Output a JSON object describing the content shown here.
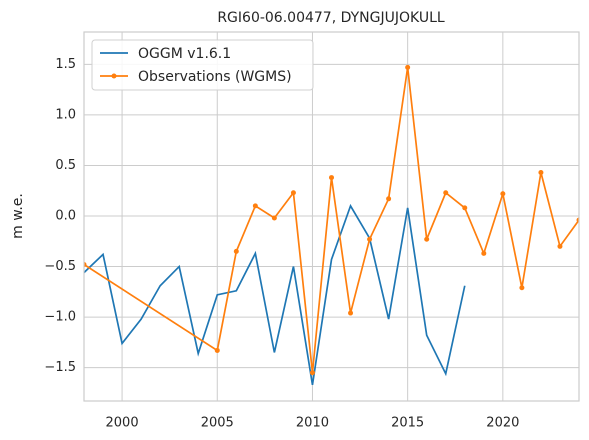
{
  "chart_data": {
    "type": "line",
    "title": "RGI60-06.00477, DYNGJUJOKULL",
    "y_label": "m w.e.",
    "xlim": [
      1998,
      2024
    ],
    "xticks": [
      2000,
      2005,
      2010,
      2015,
      2020
    ],
    "ylim": [
      -1.83,
      1.82
    ],
    "yticks": [
      {
        "value": -1.5,
        "label": "−1.5"
      },
      {
        "value": -1.0,
        "label": "−1.0"
      },
      {
        "value": -0.5,
        "label": "−0.5"
      },
      {
        "value": 0,
        "label": "0.0"
      },
      0.5,
      {
        "value": 1.0,
        "label": "1.0"
      },
      1.5
    ],
    "grid": true,
    "legend": "upper left",
    "series": [
      {
        "name": "OGGM v1.6.1",
        "color": "#1f77b4",
        "marker": false,
        "x": [
          1998,
          1999,
          2000,
          2001,
          2002,
          2003,
          2004,
          2005,
          2006,
          2007,
          2008,
          2009,
          2010,
          2011,
          2012,
          2013,
          2014,
          2015,
          2016,
          2017,
          2018
        ],
        "values": [
          -0.56,
          -0.38,
          -1.26,
          -1.02,
          -0.69,
          -0.5,
          -1.36,
          -0.78,
          -0.74,
          -0.37,
          -1.35,
          -0.5,
          -1.67,
          -0.43,
          0.1,
          -0.22,
          -1.02,
          0.08,
          -1.18,
          -1.56,
          -0.69
        ]
      },
      {
        "name": "Observations (WGMS)",
        "color": "#ff7f0e",
        "marker": true,
        "x": [
          1998,
          2005,
          2006,
          2007,
          2008,
          2009,
          2010,
          2011,
          2012,
          2013,
          2014,
          2015,
          2016,
          2017,
          2018,
          2019,
          2020,
          2021,
          2022,
          2023,
          2024
        ],
        "values": [
          -0.48,
          -1.33,
          -0.35,
          0.1,
          -0.02,
          0.23,
          -1.55,
          0.38,
          -0.96,
          -0.23,
          0.17,
          1.47,
          -0.23,
          0.23,
          0.08,
          -0.37,
          0.22,
          -0.71,
          0.43,
          -0.3,
          -0.04
        ]
      }
    ]
  }
}
